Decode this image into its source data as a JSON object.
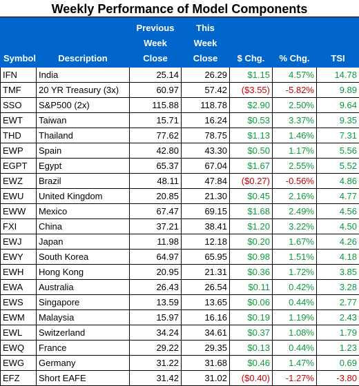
{
  "title": "Weekly Performance of Model Components",
  "headers": {
    "symbol": "Symbol",
    "description": "Description",
    "prev_close": "Previous\nWeek\nClose",
    "this_close": "This\nWeek\nClose",
    "dollar_chg": "$ Chg.",
    "pct_chg": "% Chg.",
    "tsi": "TSI"
  },
  "rows": [
    {
      "symbol": "IFN",
      "description": "India",
      "prev": "25.14",
      "this": "26.29",
      "dchg": "$1.15",
      "pchg": "4.57%",
      "tsi": "14.78",
      "dir": "pos",
      "tsi_dir": "pos"
    },
    {
      "symbol": "TMF",
      "description": "20 YR Treasury (3x)",
      "prev": "60.97",
      "this": "57.42",
      "dchg": "($3.55)",
      "pchg": "-5.82%",
      "tsi": "9.89",
      "dir": "neg",
      "tsi_dir": "pos"
    },
    {
      "symbol": "SSO",
      "description": "S&P500 (2x)",
      "prev": "115.88",
      "this": "118.78",
      "dchg": "$2.90",
      "pchg": "2.50%",
      "tsi": "9.64",
      "dir": "pos",
      "tsi_dir": "pos"
    },
    {
      "symbol": "EWT",
      "description": "Taiwan",
      "prev": "15.71",
      "this": "16.24",
      "dchg": "$0.53",
      "pchg": "3.37%",
      "tsi": "9.35",
      "dir": "pos",
      "tsi_dir": "pos"
    },
    {
      "symbol": "THD",
      "description": "Thailand",
      "prev": "77.62",
      "this": "78.75",
      "dchg": "$1.13",
      "pchg": "1.46%",
      "tsi": "7.31",
      "dir": "pos",
      "tsi_dir": "pos"
    },
    {
      "symbol": "EWP",
      "description": "Spain",
      "prev": "42.80",
      "this": "43.30",
      "dchg": "$0.50",
      "pchg": "1.17%",
      "tsi": "5.56",
      "dir": "pos",
      "tsi_dir": "pos"
    },
    {
      "symbol": "EGPT",
      "description": "Egypt",
      "prev": "65.37",
      "this": "67.04",
      "dchg": "$1.67",
      "pchg": "2.55%",
      "tsi": "5.52",
      "dir": "pos",
      "tsi_dir": "pos"
    },
    {
      "symbol": "EWZ",
      "description": "Brazil",
      "prev": "48.11",
      "this": "47.84",
      "dchg": "($0.27)",
      "pchg": "-0.56%",
      "tsi": "4.86",
      "dir": "neg",
      "tsi_dir": "pos"
    },
    {
      "symbol": "EWU",
      "description": "United Kingdom",
      "prev": "20.85",
      "this": "21.30",
      "dchg": "$0.45",
      "pchg": "2.16%",
      "tsi": "4.77",
      "dir": "pos",
      "tsi_dir": "pos"
    },
    {
      "symbol": "EWW",
      "description": "Mexico",
      "prev": "67.47",
      "this": "69.15",
      "dchg": "$1.68",
      "pchg": "2.49%",
      "tsi": "4.56",
      "dir": "pos",
      "tsi_dir": "pos"
    },
    {
      "symbol": "FXI",
      "description": "China",
      "prev": "37.21",
      "this": "38.41",
      "dchg": "$1.20",
      "pchg": "3.22%",
      "tsi": "4.50",
      "dir": "pos",
      "tsi_dir": "pos"
    },
    {
      "symbol": "EWJ",
      "description": "Japan",
      "prev": "11.98",
      "this": "12.18",
      "dchg": "$0.20",
      "pchg": "1.67%",
      "tsi": "4.26",
      "dir": "pos",
      "tsi_dir": "pos"
    },
    {
      "symbol": "EWY",
      "description": "South Korea",
      "prev": "64.97",
      "this": "65.95",
      "dchg": "$0.98",
      "pchg": "1.51%",
      "tsi": "4.18",
      "dir": "pos",
      "tsi_dir": "pos"
    },
    {
      "symbol": "EWH",
      "description": "Hong Kong",
      "prev": "20.95",
      "this": "21.31",
      "dchg": "$0.36",
      "pchg": "1.72%",
      "tsi": "3.85",
      "dir": "pos",
      "tsi_dir": "pos"
    },
    {
      "symbol": "EWA",
      "description": "Australia",
      "prev": "26.43",
      "this": "26.54",
      "dchg": "$0.11",
      "pchg": "0.42%",
      "tsi": "3.28",
      "dir": "pos",
      "tsi_dir": "pos"
    },
    {
      "symbol": "EWS",
      "description": "Singapore",
      "prev": "13.59",
      "this": "13.65",
      "dchg": "$0.06",
      "pchg": "0.44%",
      "tsi": "2.77",
      "dir": "pos",
      "tsi_dir": "pos"
    },
    {
      "symbol": "EWM",
      "description": "Malaysia",
      "prev": "15.97",
      "this": "16.16",
      "dchg": "$0.19",
      "pchg": "1.19%",
      "tsi": "2.43",
      "dir": "pos",
      "tsi_dir": "pos"
    },
    {
      "symbol": "EWL",
      "description": "Switzerland",
      "prev": "34.24",
      "this": "34.61",
      "dchg": "$0.37",
      "pchg": "1.08%",
      "tsi": "1.79",
      "dir": "pos",
      "tsi_dir": "pos"
    },
    {
      "symbol": "EWQ",
      "description": "France",
      "prev": "29.22",
      "this": "29.35",
      "dchg": "$0.13",
      "pchg": "0.44%",
      "tsi": "1.23",
      "dir": "pos",
      "tsi_dir": "pos"
    },
    {
      "symbol": "EWG",
      "description": "Germany",
      "prev": "31.22",
      "this": "31.68",
      "dchg": "$0.46",
      "pchg": "1.47%",
      "tsi": "0.69",
      "dir": "pos",
      "tsi_dir": "pos"
    },
    {
      "symbol": "EFZ",
      "description": "Short EAFE",
      "prev": "31.42",
      "this": "31.02",
      "dchg": "($0.40)",
      "pchg": "-1.27%",
      "tsi": "-3.80",
      "dir": "neg",
      "tsi_dir": "neg"
    }
  ],
  "colors": {
    "header_bg": "#0066cc",
    "header_text": "#ffffff",
    "positive": "#0a9b3b",
    "negative": "#cc0000"
  }
}
